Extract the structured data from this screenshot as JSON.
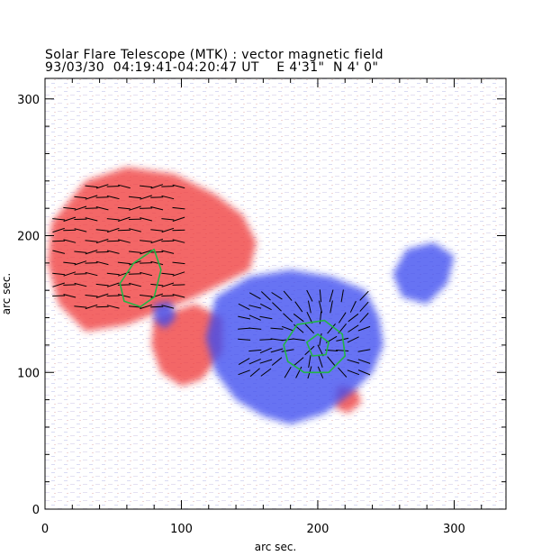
{
  "chart_data": {
    "type": "heatmap",
    "title": "Solar Flare Telescope (MTK) : vector magnetic field",
    "subtitle": "93/03/30  04:19:41-04:20:47 UT    E 4'31\"  N 4' 0\"",
    "xlabel": "arc sec.",
    "ylabel": "arc sec.",
    "xlim": [
      0,
      338
    ],
    "ylim": [
      0,
      315
    ],
    "x_ticks": [
      0,
      100,
      200,
      300
    ],
    "y_ticks": [
      0,
      100,
      200,
      300
    ],
    "polarity_colors": {
      "positive": "#f03c3c",
      "negative": "#3c4cf0",
      "contour": "#22b544",
      "vector": "#000000"
    },
    "series": [
      {
        "name": "positive polarity region (red)",
        "polygon": [
          [
            5,
            210
          ],
          [
            30,
            240
          ],
          [
            60,
            250
          ],
          [
            95,
            245
          ],
          [
            125,
            230
          ],
          [
            145,
            215
          ],
          [
            155,
            195
          ],
          [
            150,
            175
          ],
          [
            130,
            165
          ],
          [
            110,
            155
          ],
          [
            85,
            145
          ],
          [
            60,
            135
          ],
          [
            30,
            130
          ],
          [
            10,
            150
          ],
          [
            2,
            180
          ]
        ]
      },
      {
        "name": "positive polarity lobe (red)",
        "polygon": [
          [
            80,
            140
          ],
          [
            110,
            150
          ],
          [
            130,
            140
          ],
          [
            130,
            115
          ],
          [
            115,
            95
          ],
          [
            100,
            90
          ],
          [
            85,
            100
          ],
          [
            78,
            120
          ]
        ]
      },
      {
        "name": "positive spot (red)",
        "polygon": [
          [
            215,
            90
          ],
          [
            228,
            88
          ],
          [
            232,
            78
          ],
          [
            222,
            70
          ],
          [
            212,
            75
          ]
        ]
      },
      {
        "name": "negative polarity region (blue)",
        "polygon": [
          [
            125,
            155
          ],
          [
            150,
            170
          ],
          [
            180,
            175
          ],
          [
            210,
            170
          ],
          [
            235,
            160
          ],
          [
            245,
            140
          ],
          [
            248,
            120
          ],
          [
            240,
            100
          ],
          [
            225,
            85
          ],
          [
            205,
            70
          ],
          [
            180,
            62
          ],
          [
            160,
            68
          ],
          [
            140,
            80
          ],
          [
            125,
            100
          ],
          [
            118,
            125
          ]
        ]
      },
      {
        "name": "negative plage (blue)",
        "polygon": [
          [
            265,
            190
          ],
          [
            285,
            195
          ],
          [
            300,
            185
          ],
          [
            295,
            165
          ],
          [
            280,
            150
          ],
          [
            262,
            155
          ],
          [
            255,
            172
          ]
        ]
      },
      {
        "name": "negative spot (blue)",
        "polygon": [
          [
            80,
            150
          ],
          [
            92,
            152
          ],
          [
            96,
            140
          ],
          [
            88,
            132
          ],
          [
            80,
            138
          ]
        ]
      },
      {
        "name": "magnetic contour A (green)",
        "polygon": [
          [
            55,
            165
          ],
          [
            65,
            180
          ],
          [
            80,
            190
          ],
          [
            85,
            175
          ],
          [
            80,
            155
          ],
          [
            70,
            148
          ],
          [
            58,
            152
          ]
        ]
      },
      {
        "name": "magnetic contour B (green)",
        "polygon": [
          [
            175,
            120
          ],
          [
            185,
            135
          ],
          [
            205,
            138
          ],
          [
            218,
            128
          ],
          [
            220,
            112
          ],
          [
            208,
            100
          ],
          [
            190,
            100
          ],
          [
            178,
            108
          ]
        ]
      },
      {
        "name": "magnetic contour B inner (green)",
        "polygon": [
          [
            192,
            122
          ],
          [
            200,
            128
          ],
          [
            208,
            122
          ],
          [
            206,
            113
          ],
          [
            196,
            112
          ]
        ]
      }
    ]
  }
}
